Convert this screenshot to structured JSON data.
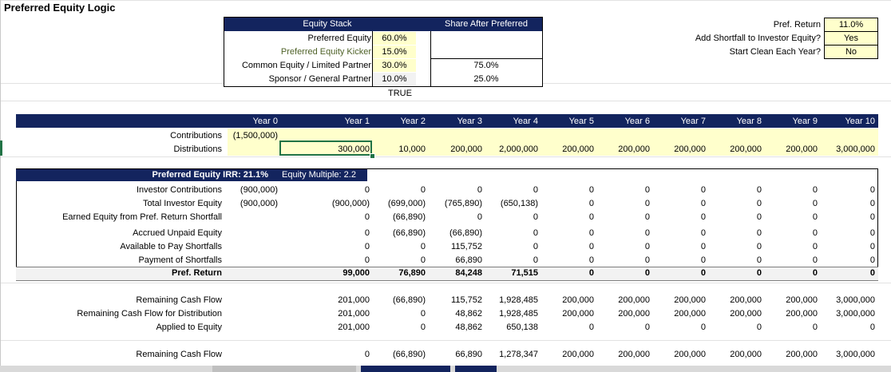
{
  "sheet": {
    "title": "Preferred Equity Logic"
  },
  "equity_stack": {
    "header_left": "Equity Stack",
    "header_right": "Share After Preferred",
    "rows": [
      {
        "label": "Preferred Equity",
        "value": "60.0%",
        "share": ""
      },
      {
        "label": "Preferred Equity Kicker",
        "value": "15.0%",
        "share": ""
      },
      {
        "label": "Common Equity / Limited Partner",
        "value": "30.0%",
        "share": "75.0%"
      },
      {
        "label": "Sponsor / General Partner",
        "value": "10.0%",
        "share": "25.0%"
      }
    ],
    "check": "TRUE"
  },
  "settings": [
    {
      "label": "Pref. Return",
      "value": "11.0%"
    },
    {
      "label": "Add Shortfall to Investor Equity?",
      "value": "Yes"
    },
    {
      "label": "Start Clean Each Year?",
      "value": "No"
    }
  ],
  "years": [
    "Year 0",
    "Year 1",
    "Year 2",
    "Year 3",
    "Year 4",
    "Year 5",
    "Year 6",
    "Year 7",
    "Year 8",
    "Year 9",
    "Year 10"
  ],
  "cashflows": {
    "contributions": {
      "label": "Contributions",
      "values": [
        "(1,500,000)",
        "",
        "",
        "",
        "",
        "",
        "",
        "",
        "",
        "",
        ""
      ]
    },
    "distributions": {
      "label": "Distributions",
      "values": [
        "",
        "300,000",
        "10,000",
        "200,000",
        "2,000,000",
        "200,000",
        "200,000",
        "200,000",
        "200,000",
        "200,000",
        "3,000,000"
      ]
    }
  },
  "preferred": {
    "header_label": "Preferred Equity",
    "irr": "IRR: 21.1%",
    "multiple": "Equity Multiple: 2.2",
    "rows": [
      {
        "label": "Investor Contributions",
        "values": [
          "(900,000)",
          "0",
          "0",
          "0",
          "0",
          "0",
          "0",
          "0",
          "0",
          "0",
          "0"
        ]
      },
      {
        "label": "Total Investor Equity",
        "values": [
          "(900,000)",
          "(900,000)",
          "(699,000)",
          "(765,890)",
          "(650,138)",
          "0",
          "0",
          "0",
          "0",
          "0",
          "0"
        ]
      },
      {
        "label": "Earned Equity from Pref. Return Shortfall",
        "values": [
          "",
          "0",
          "(66,890)",
          "0",
          "0",
          "0",
          "0",
          "0",
          "0",
          "0",
          "0"
        ]
      },
      {
        "label": "Accrued Unpaid Equity",
        "values": [
          "",
          "0",
          "(66,890)",
          "(66,890)",
          "0",
          "0",
          "0",
          "0",
          "0",
          "0",
          "0"
        ]
      },
      {
        "label": "Available to Pay Shortfalls",
        "values": [
          "",
          "0",
          "0",
          "115,752",
          "0",
          "0",
          "0",
          "0",
          "0",
          "0",
          "0"
        ]
      },
      {
        "label": "Payment of Shortfalls",
        "values": [
          "",
          "0",
          "0",
          "66,890",
          "0",
          "0",
          "0",
          "0",
          "0",
          "0",
          "0"
        ]
      }
    ],
    "total": {
      "label": "Pref. Return",
      "values": [
        "",
        "99,000",
        "76,890",
        "84,248",
        "71,515",
        "0",
        "0",
        "0",
        "0",
        "0",
        "0"
      ]
    }
  },
  "remaining": {
    "rows": [
      {
        "label": "Remaining Cash Flow",
        "values": [
          "",
          "201,000",
          "(66,890)",
          "115,752",
          "1,928,485",
          "200,000",
          "200,000",
          "200,000",
          "200,000",
          "200,000",
          "3,000,000"
        ]
      },
      {
        "label": "Remaining Cash Flow for Distribution",
        "values": [
          "",
          "201,000",
          "0",
          "48,862",
          "1,928,485",
          "200,000",
          "200,000",
          "200,000",
          "200,000",
          "200,000",
          "3,000,000"
        ]
      },
      {
        "label": "Applied to Equity",
        "values": [
          "",
          "201,000",
          "0",
          "48,862",
          "650,138",
          "0",
          "0",
          "0",
          "0",
          "0",
          "0"
        ]
      }
    ],
    "last": {
      "label": "Remaining Cash Flow",
      "values": [
        "",
        "0",
        "(66,890)",
        "66,890",
        "1,278,347",
        "200,000",
        "200,000",
        "200,000",
        "200,000",
        "200,000",
        "3,000,000"
      ]
    }
  }
}
